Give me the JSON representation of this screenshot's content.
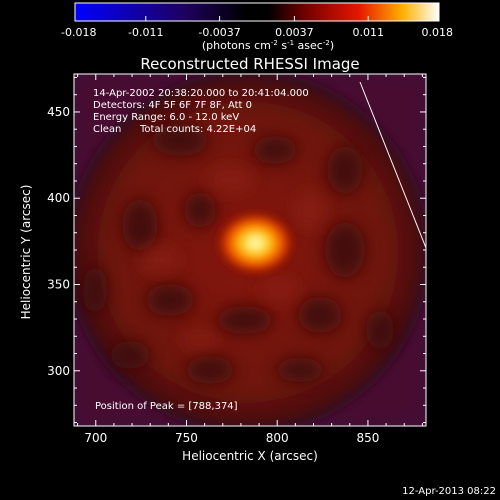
{
  "chart_data": {
    "type": "heatmap",
    "title": "Reconstructed RHESSI Image",
    "xlabel": "Heliocentric X (arcsec)",
    "ylabel": "Heliocentric Y (arcsec)",
    "xlim": [
      688,
      882
    ],
    "ylim": [
      268,
      472
    ],
    "x_ticks": [
      700,
      750,
      800,
      850
    ],
    "y_ticks": [
      300,
      350,
      400,
      450
    ],
    "peak": {
      "x": 788,
      "y": 374
    },
    "annotations": {
      "time_range": "14-Apr-2002 20:38:20.000 to 20:41:04.000",
      "detectors": "Detectors: 4F 5F 6F 7F 8F, Att 0",
      "energy_range": "Energy Range: 6.0 - 12.0 keV",
      "clean_label": "Clean",
      "total_counts": "Total counts: 4.22E+04",
      "position_of_peak": "Position of Peak = [788,374]"
    },
    "colorbar": {
      "ticks": [
        "-0.018",
        "-0.011",
        "-0.0037",
        "0.0037",
        "0.011",
        "0.018"
      ],
      "range": [
        -0.018,
        0.018
      ],
      "units_text": "(photons cm",
      "units_sup1": "-2",
      "units_mid": " s",
      "units_sup2": "-1",
      "units_mid2": " asec",
      "units_sup3": "-2",
      "units_end": ")"
    }
  },
  "footer": {
    "timestamp": "12-Apr-2013 08:22"
  }
}
